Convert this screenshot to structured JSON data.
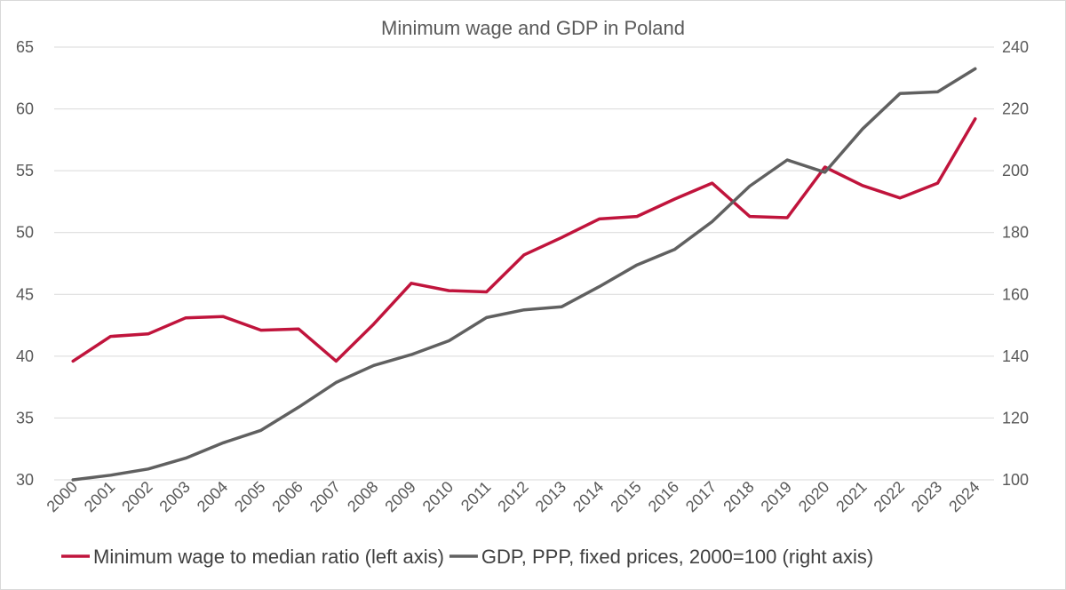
{
  "chart_data": {
    "type": "line",
    "title": "Minimum wage and GDP in Poland",
    "categories": [
      "2000",
      "2001",
      "2002",
      "2003",
      "2004",
      "2005",
      "2006",
      "2007",
      "2008",
      "2009",
      "2010",
      "2011",
      "2012",
      "2013",
      "2014",
      "2015",
      "2016",
      "2017",
      "2018",
      "2019",
      "2020",
      "2021",
      "2022",
      "2023",
      "2024"
    ],
    "series": [
      {
        "name": "Minimum wage to median ratio (left axis)",
        "axis": "left",
        "color": "#c0143c",
        "values": [
          39.6,
          41.6,
          41.8,
          43.1,
          43.2,
          42.1,
          42.2,
          39.6,
          42.6,
          45.9,
          45.3,
          45.2,
          48.2,
          49.6,
          51.1,
          51.3,
          52.7,
          54.0,
          51.3,
          51.2,
          55.3,
          53.8,
          52.8,
          54.0,
          59.2
        ]
      },
      {
        "name": "GDP, PPP, fixed prices, 2000=100 (right axis)",
        "axis": "right",
        "color": "#606060",
        "values": [
          100,
          101.5,
          103.5,
          107,
          112,
          116,
          123.5,
          131.5,
          137,
          140.5,
          145,
          152.5,
          155,
          156,
          162.5,
          169.5,
          174.5,
          183.5,
          195,
          203.5,
          199.5,
          213.5,
          225,
          225.5,
          233
        ]
      }
    ],
    "y_left": {
      "min": 30,
      "max": 65,
      "step": 5,
      "ticks": [
        "30",
        "35",
        "40",
        "45",
        "50",
        "55",
        "60",
        "65"
      ]
    },
    "y_right": {
      "min": 100,
      "max": 240,
      "step": 20,
      "ticks": [
        "100",
        "120",
        "140",
        "160",
        "180",
        "200",
        "220",
        "240"
      ]
    },
    "grid": true,
    "legend_position": "bottom"
  }
}
